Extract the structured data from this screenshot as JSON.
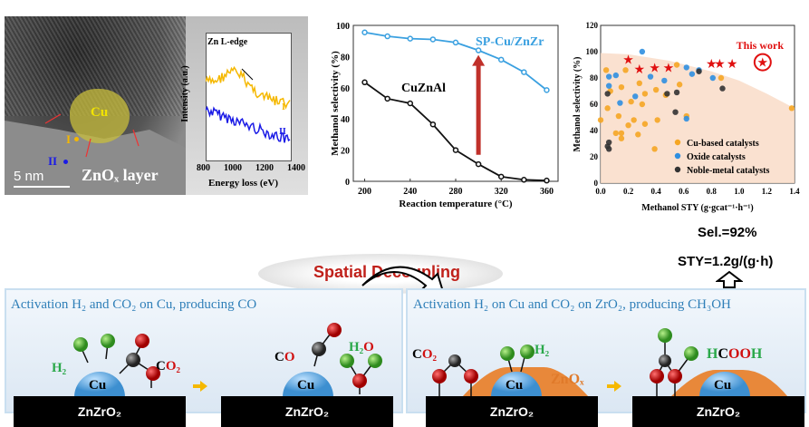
{
  "tem": {
    "cu_label": "Cu",
    "point_1": "I",
    "point_2": "II",
    "layer_label": "ZnOₓ layer",
    "scale_bar": "5 nm"
  },
  "eels": {
    "annotation": "Zn L-edge",
    "ylabel": "Intensity (a.u.)",
    "xlabel": "Energy loss (eV)",
    "xticks": [
      "800",
      "1000",
      "1200",
      "1400"
    ],
    "curve_1": "I",
    "curve_2": "II",
    "colors": {
      "I": "#f5b800",
      "II": "#1a1ae6"
    }
  },
  "chart_data": [
    {
      "type": "line",
      "title": "",
      "xlabel": "Reaction temperature (°C)",
      "ylabel": "Methanol selectivity (%)",
      "xlim": [
        190,
        370
      ],
      "ylim": [
        0,
        100
      ],
      "xticks": [
        200,
        240,
        280,
        320,
        360
      ],
      "yticks": [
        0,
        20,
        40,
        60,
        80,
        100
      ],
      "x": [
        200,
        220,
        240,
        260,
        280,
        300,
        320,
        340,
        360
      ],
      "series": [
        {
          "name": "SP-Cu/ZnZr",
          "color": "#3aa0e0",
          "values": [
            95.5,
            93,
            91.5,
            91,
            89,
            84,
            78,
            70,
            58.5
          ]
        },
        {
          "name": "CuZnAl",
          "color": "#111111",
          "values": [
            63.5,
            53,
            50,
            36.5,
            20,
            11,
            3,
            1,
            0.5
          ]
        }
      ],
      "annotation": {
        "type": "arrow",
        "x": 300,
        "from": 17,
        "to": 81,
        "color": "#c0302a"
      }
    },
    {
      "type": "scatter",
      "xlabel": "Methanol STY (g·gcat⁻¹·h⁻¹)",
      "ylabel": "Methanol selectivity (%)",
      "xlim": [
        0,
        1.4
      ],
      "ylim": [
        0,
        120
      ],
      "xticks": [
        "0.0",
        "0.2",
        "0.4",
        "0.6",
        "0.8",
        "1.0",
        "1.2",
        "1.4"
      ],
      "yticks": [
        "0",
        "20",
        "40",
        "60",
        "80",
        "100",
        "120"
      ],
      "shaded_boundary": [
        [
          0,
          99
        ],
        [
          0.2,
          98
        ],
        [
          0.5,
          93
        ],
        [
          0.8,
          85
        ],
        [
          1.0,
          78
        ],
        [
          1.2,
          68
        ],
        [
          1.4,
          57
        ]
      ],
      "legend_position": "bottom-right",
      "series": [
        {
          "name": "Cu-based catalysts",
          "color": "#f5a623",
          "points": [
            [
              0,
              48
            ],
            [
              0.04,
              86
            ],
            [
              0.05,
              57
            ],
            [
              0.07,
              70
            ],
            [
              0.11,
              38
            ],
            [
              0.13,
              51
            ],
            [
              0.15,
              73
            ],
            [
              0.15,
              38
            ],
            [
              0.15,
              34
            ],
            [
              0.18,
              86
            ],
            [
              0.2,
              44
            ],
            [
              0.22,
              62
            ],
            [
              0.24,
              48
            ],
            [
              0.27,
              37
            ],
            [
              0.28,
              76
            ],
            [
              0.3,
              60
            ],
            [
              0.32,
              45
            ],
            [
              0.32,
              68
            ],
            [
              0.39,
              26
            ],
            [
              0.4,
              71
            ],
            [
              0.41,
              48
            ],
            [
              0.47,
              67
            ],
            [
              0.55,
              90
            ],
            [
              0.57,
              75
            ],
            [
              0.62,
              51
            ],
            [
              0.87,
              80
            ],
            [
              1.38,
              57
            ]
          ]
        },
        {
          "name": "Oxide catalysts",
          "color": "#2f8fe0",
          "points": [
            [
              0.06,
              81
            ],
            [
              0.06,
              74
            ],
            [
              0.11,
              82
            ],
            [
              0.14,
              61
            ],
            [
              0.25,
              66
            ],
            [
              0.3,
              100
            ],
            [
              0.36,
              81
            ],
            [
              0.46,
              78
            ],
            [
              0.62,
              88
            ],
            [
              0.66,
              83
            ],
            [
              0.71,
              86
            ],
            [
              0.81,
              80
            ],
            [
              0.62,
              49
            ]
          ]
        },
        {
          "name": "Noble-metal catalysts",
          "color": "#333333",
          "points": [
            [
              0.05,
              68
            ],
            [
              0.06,
              31
            ],
            [
              0.06,
              26
            ],
            [
              0.05,
              28
            ],
            [
              0.48,
              68
            ],
            [
              0.54,
              54
            ],
            [
              0.55,
              69
            ],
            [
              0.71,
              85
            ],
            [
              0.88,
              72
            ]
          ]
        },
        {
          "name": "This work (stars)",
          "color": "#e01010",
          "points": [
            [
              0.2,
              94
            ],
            [
              0.28,
              87
            ],
            [
              0.39,
              88
            ],
            [
              0.49,
              88
            ],
            [
              0.8,
              91
            ],
            [
              0.86,
              91
            ],
            [
              0.95,
              91
            ],
            [
              1.17,
              92
            ]
          ]
        }
      ],
      "annotation": {
        "text": "This work",
        "x": 1.17,
        "y": 92
      }
    }
  ],
  "middle": {
    "title": "Spatial Decoupling",
    "selectivity": "Sel.=92%",
    "sty": "STY=1.2g/(g·h)"
  },
  "left_panel": {
    "title": "Activation H₂ and CO₂ on Cu, producing CO",
    "support": "ZnZrO₂",
    "cu": "Cu",
    "h2": "H₂",
    "co2_c": "C",
    "co2_o": "O₂",
    "co_c": "C",
    "co_o": "O",
    "h2o_h": "H₂",
    "h2o_o": "O"
  },
  "right_panel": {
    "title": "Activation H₂ on Cu and CO₂ on ZrO₂, producing CH₃OH",
    "support": "ZnZrO₂",
    "cu": "Cu",
    "h2": "H₂",
    "co2_c": "C",
    "co2_o": "O₂",
    "znox": "ZnOₓ",
    "hcooh_h": "H",
    "hcooh_c": "C",
    "hcooh_oo": "OO",
    "hcooh_h2": "H"
  }
}
